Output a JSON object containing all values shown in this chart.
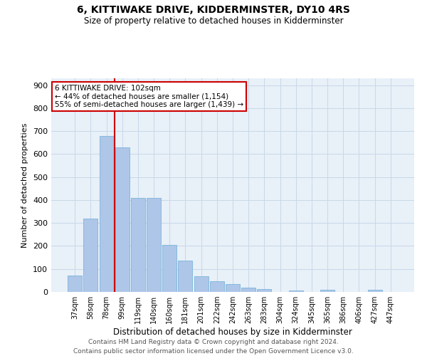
{
  "title": "6, KITTIWAKE DRIVE, KIDDERMINSTER, DY10 4RS",
  "subtitle": "Size of property relative to detached houses in Kidderminster",
  "xlabel": "Distribution of detached houses by size in Kidderminster",
  "ylabel": "Number of detached properties",
  "categories": [
    "37sqm",
    "58sqm",
    "78sqm",
    "99sqm",
    "119sqm",
    "140sqm",
    "160sqm",
    "181sqm",
    "201sqm",
    "222sqm",
    "242sqm",
    "263sqm",
    "283sqm",
    "304sqm",
    "324sqm",
    "345sqm",
    "365sqm",
    "386sqm",
    "406sqm",
    "427sqm",
    "447sqm"
  ],
  "values": [
    70,
    320,
    680,
    630,
    410,
    410,
    205,
    137,
    68,
    45,
    33,
    20,
    12,
    0,
    5,
    0,
    10,
    0,
    0,
    10,
    0
  ],
  "bar_color": "#aec6e8",
  "bar_edge_color": "#6baed6",
  "vline_x_index": 3,
  "vline_color": "#cc0000",
  "annotation_line1": "6 KITTIWAKE DRIVE: 102sqm",
  "annotation_line2": "← 44% of detached houses are smaller (1,154)",
  "annotation_line3": "55% of semi-detached houses are larger (1,439) →",
  "annotation_box_color": "#ffffff",
  "annotation_box_edge": "#cc0000",
  "grid_color": "#c8d8e8",
  "background_color": "#e8f0f8",
  "footer": "Contains HM Land Registry data © Crown copyright and database right 2024.\nContains public sector information licensed under the Open Government Licence v3.0.",
  "ylim": [
    0,
    930
  ],
  "yticks": [
    0,
    100,
    200,
    300,
    400,
    500,
    600,
    700,
    800,
    900
  ]
}
